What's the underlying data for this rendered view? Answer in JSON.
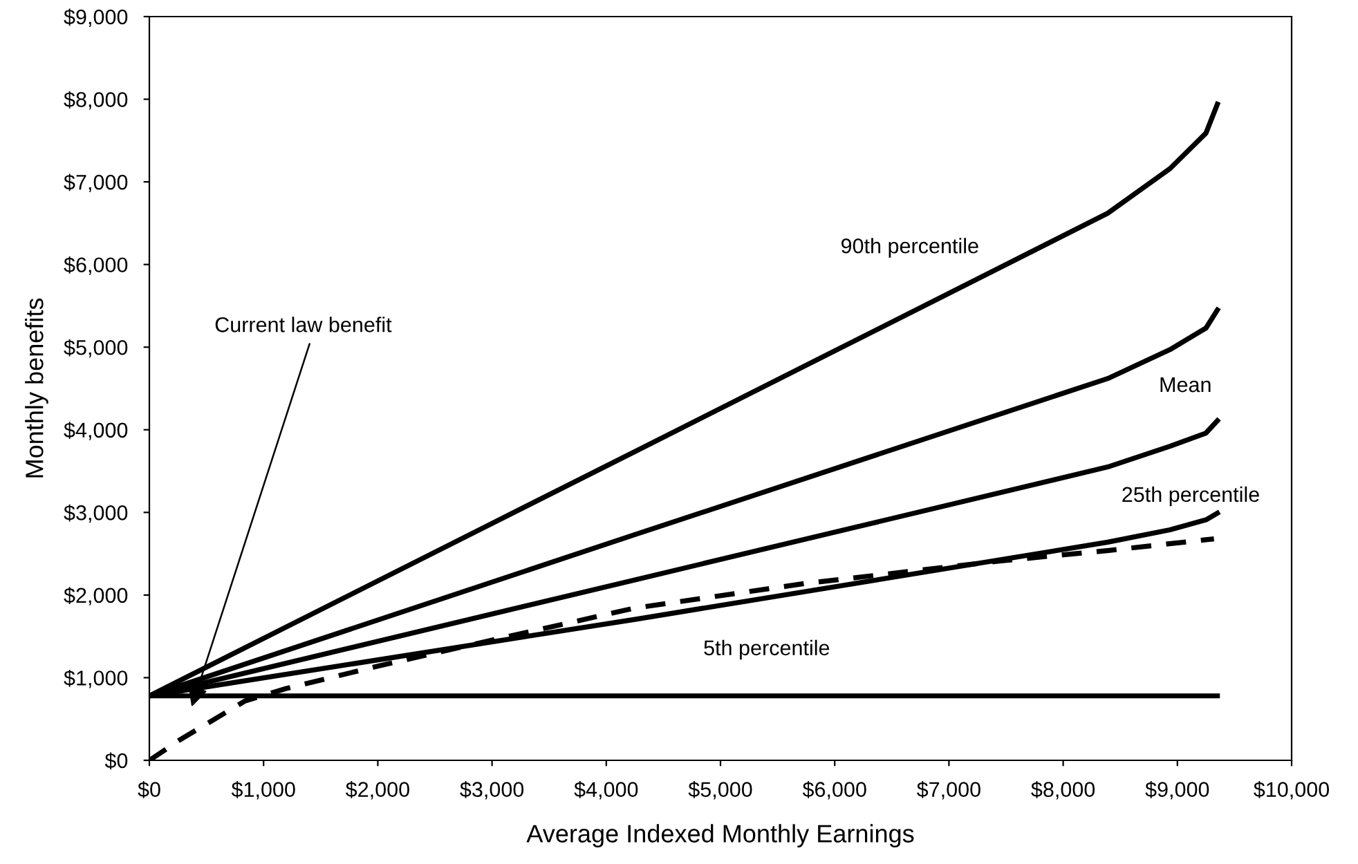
{
  "chart_data": {
    "type": "line",
    "xlabel": "Average Indexed Monthly Earnings",
    "ylabel": "Monthly benefits",
    "xlim": [
      0,
      10000
    ],
    "ylim": [
      0,
      9000
    ],
    "xticks": [
      {
        "value": 0,
        "label": "$0"
      },
      {
        "value": 1000,
        "label": "$1,000"
      },
      {
        "value": 2000,
        "label": "$2,000"
      },
      {
        "value": 3000,
        "label": "$3,000"
      },
      {
        "value": 4000,
        "label": "$4,000"
      },
      {
        "value": 5000,
        "label": "$5,000"
      },
      {
        "value": 6000,
        "label": "$6,000"
      },
      {
        "value": 7000,
        "label": "$7,000"
      },
      {
        "value": 8000,
        "label": "$8,000"
      },
      {
        "value": 9000,
        "label": "$9,000"
      },
      {
        "value": 10000,
        "label": "$10,000"
      }
    ],
    "yticks": [
      {
        "value": 0,
        "label": "$0"
      },
      {
        "value": 1000,
        "label": "$1,000"
      },
      {
        "value": 2000,
        "label": "$2,000"
      },
      {
        "value": 3000,
        "label": "$3,000"
      },
      {
        "value": 4000,
        "label": "$4,000"
      },
      {
        "value": 5000,
        "label": "$5,000"
      },
      {
        "value": 6000,
        "label": "$6,000"
      },
      {
        "value": 7000,
        "label": "$7,000"
      },
      {
        "value": 8000,
        "label": "$8,000"
      },
      {
        "value": 9000,
        "label": "$9,000"
      }
    ],
    "grid": false,
    "legend": false,
    "marker": "none",
    "series": [
      {
        "name": "90th percentile",
        "color": "#000000",
        "line_style": "solid",
        "x": [
          0,
          4270,
          8390,
          8935,
          9250,
          9350
        ],
        "values": [
          780,
          3750,
          6620,
          7160,
          7590,
          7940
        ]
      },
      {
        "name": "Mean",
        "color": "#000000",
        "line_style": "solid",
        "x": [
          0,
          4270,
          8390,
          8935,
          9250,
          9350
        ],
        "values": [
          780,
          2740,
          4620,
          4970,
          5230,
          5450
        ]
      },
      {
        "name": "25th percentile",
        "color": "#000000",
        "line_style": "solid",
        "x": [
          0,
          4270,
          8390,
          8935,
          9250,
          9350
        ],
        "values": [
          780,
          2190,
          3550,
          3800,
          3960,
          4110
        ]
      },
      {
        "name": "5th percentile",
        "color": "#000000",
        "line_style": "solid",
        "x": [
          0,
          4270,
          8390,
          8935,
          9250,
          9350
        ],
        "values": [
          780,
          1710,
          2640,
          2790,
          2910,
          2990
        ]
      },
      {
        "color": "#000000",
        "line_style": "solid",
        "x": [
          0,
          9350
        ],
        "values": [
          780,
          780
        ]
      },
      {
        "color": "#000000",
        "line_style": "dashed",
        "x": [
          0,
          270,
          840,
          1200,
          2000,
          2890,
          4240,
          5740,
          7430,
          8400,
          9320
        ],
        "values": [
          0,
          250,
          720,
          870,
          1140,
          1420,
          1840,
          2140,
          2410,
          2540,
          2680
        ]
      }
    ],
    "annotations": [
      "Current law benefit"
    ]
  }
}
